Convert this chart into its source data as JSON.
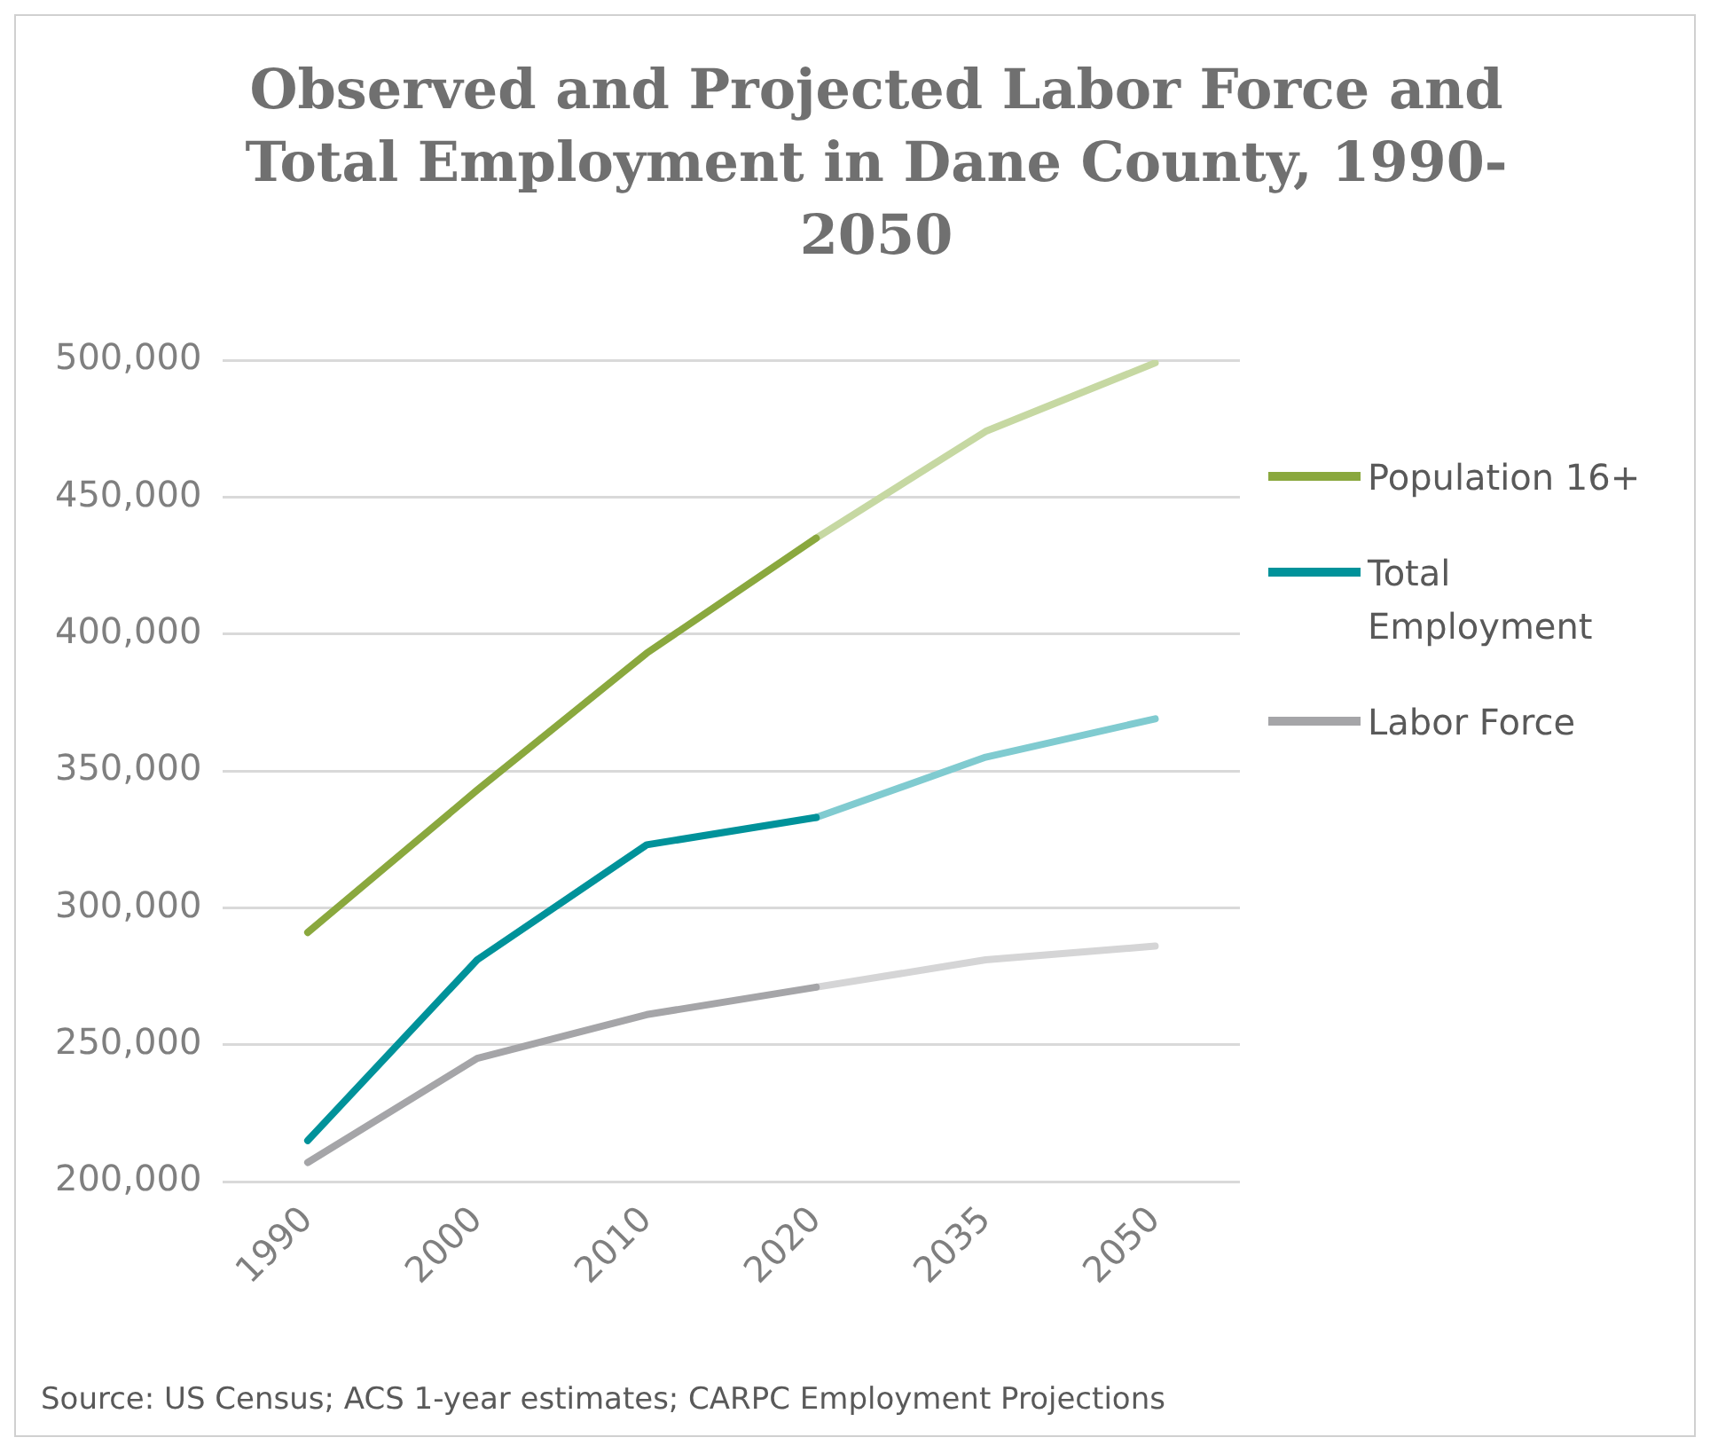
{
  "chart_data": {
    "type": "line",
    "title": "Observed and Projected Labor Force  and Total Employment in Dane County, 1990-2050",
    "categories": [
      "1990",
      "2000",
      "2010",
      "2020",
      "2035",
      "2050"
    ],
    "series": [
      {
        "name": "Population 16+",
        "color": "#8aa83e",
        "values": [
          291000,
          343000,
          393000,
          435000,
          null,
          null
        ]
      },
      {
        "color": "#c6d8a2",
        "values": [
          null,
          null,
          null,
          435000,
          474000,
          499000
        ]
      },
      {
        "name": "Total Employment",
        "color": "#00929a",
        "values": [
          215000,
          281000,
          323000,
          333000,
          null,
          null
        ]
      },
      {
        "color": "#80cbd0",
        "values": [
          null,
          null,
          null,
          333000,
          355000,
          369000
        ]
      },
      {
        "name": "Labor Force",
        "color": "#a5a5a8",
        "values": [
          207000,
          245000,
          261000,
          271000,
          null,
          null
        ]
      },
      {
        "color": "#d5d5d6",
        "values": [
          null,
          null,
          null,
          271000,
          281000,
          286000
        ]
      }
    ],
    "ylim": [
      200000,
      500000
    ],
    "yticks": [
      {
        "value": 200000,
        "label": "200,000"
      },
      {
        "value": 250000,
        "label": "250,000"
      },
      {
        "value": 300000,
        "label": "300,000"
      },
      {
        "value": 350000,
        "label": "350,000"
      },
      {
        "value": 400000,
        "label": "400,000"
      },
      {
        "value": 450000,
        "label": "450,000"
      },
      {
        "value": 500000,
        "label": "500,000"
      }
    ],
    "grid": "y",
    "legend": "right",
    "annotations": [
      "Source: US Census; ACS 1-year estimates; CARPC Employment Projections"
    ]
  }
}
